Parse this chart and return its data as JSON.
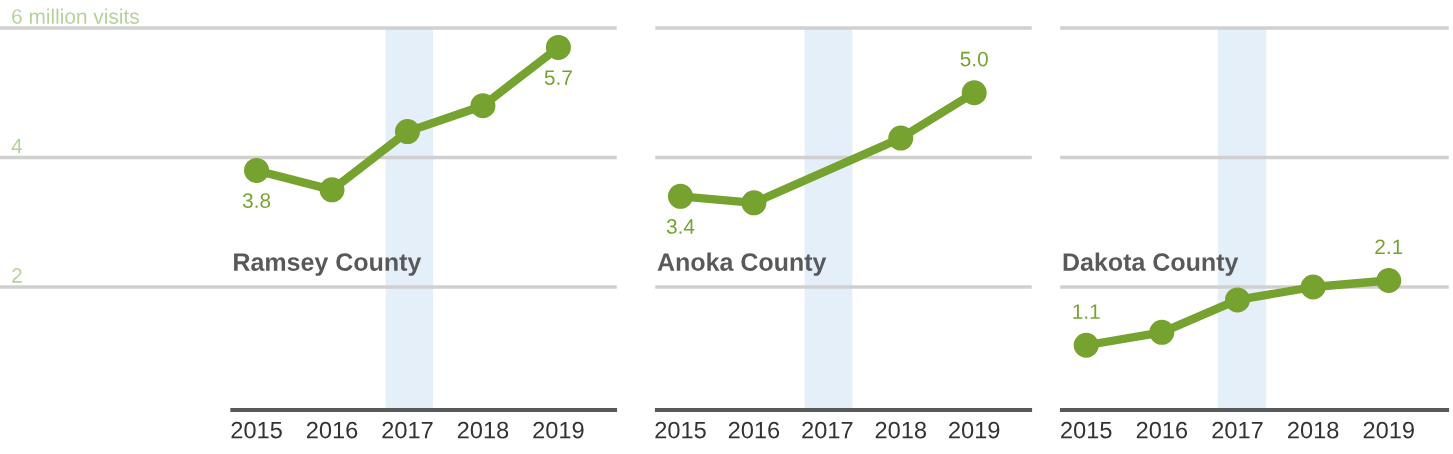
{
  "chart_data": [
    {
      "type": "line",
      "title": "Ramsey County",
      "xlim": [
        2011.6,
        2019.75
      ],
      "xticks": [
        2015,
        2016,
        2017,
        2018,
        2019
      ],
      "ylim": [
        0.1,
        6
      ],
      "yticks": [
        2,
        4,
        {
          "value": 6,
          "label": "6 million visits"
        }
      ],
      "grid": "y",
      "marker": "circle",
      "line_style": "solid",
      "bands": [
        {
          "axis": "x",
          "from": 2016.71,
          "to": 2017.34,
          "color": "#e4eff9"
        }
      ],
      "series": [
        {
          "color": "#76a22f",
          "x": [
            2015,
            2016,
            2017,
            2018,
            2019
          ],
          "values": [
            3.8,
            3.5,
            4.4,
            4.8,
            5.7
          ],
          "value_labels": [
            "3.8",
            null,
            null,
            null,
            "5.7"
          ]
        }
      ]
    },
    {
      "type": "line",
      "title": "Anoka County",
      "xlim": [
        2014.68,
        2019.76
      ],
      "xticks": [
        2015,
        2016,
        2017,
        2018,
        2019
      ],
      "ylim": [
        0.1,
        6
      ],
      "yticks": [
        2,
        4,
        6
      ],
      "grid": "y",
      "marker": "circle",
      "line_style": "solid",
      "tick_labels": "x",
      "bands": [
        {
          "axis": "x",
          "from": 2016.69,
          "to": 2017.34,
          "color": "#e4eff9"
        }
      ],
      "series": [
        {
          "color": "#76a22f",
          "x": [
            2015,
            2016,
            2017,
            2018,
            2019
          ],
          "values": [
            3.4,
            3.3,
            null,
            4.3,
            5.0
          ],
          "value_labels": [
            "3.4",
            null,
            null,
            null,
            "5.0"
          ]
        }
      ]
    },
    {
      "type": "line",
      "title": "Dakota County",
      "xlim": [
        2014.68,
        2019.77
      ],
      "xticks": [
        2015,
        2016,
        2017,
        2018,
        2019
      ],
      "ylim": [
        0.1,
        6
      ],
      "yticks": [
        2,
        4,
        6
      ],
      "grid": "y",
      "marker": "circle",
      "line_style": "solid",
      "tick_labels": "x",
      "bands": [
        {
          "axis": "x",
          "from": 2016.74,
          "to": 2017.38,
          "color": "#e4eff9"
        }
      ],
      "series": [
        {
          "color": "#76a22f",
          "x": [
            2015,
            2016,
            2017,
            2018,
            2019
          ],
          "values": [
            1.1,
            1.3,
            1.8,
            2.0,
            2.1
          ],
          "value_labels": [
            "1.1",
            null,
            null,
            null,
            "2.1"
          ]
        }
      ]
    }
  ]
}
